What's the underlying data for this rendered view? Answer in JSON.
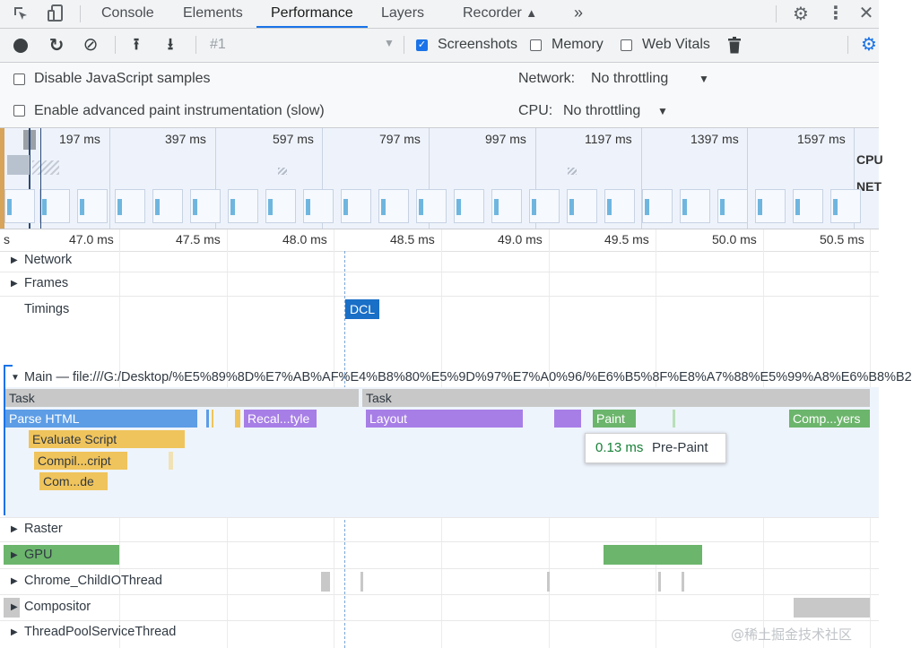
{
  "tabs": {
    "console": "Console",
    "elements": "Elements",
    "performance": "Performance",
    "layers": "Layers",
    "recorder": "Recorder",
    "more": "»"
  },
  "toolbar": {
    "recording_select": "#1",
    "screenshots": "Screenshots",
    "memory": "Memory",
    "web_vitals": "Web Vitals",
    "screenshots_checked": true,
    "memory_checked": false,
    "web_vitals_checked": false
  },
  "settings": {
    "disable_js_samples": "Disable JavaScript samples",
    "advanced_paint": "Enable advanced paint instrumentation (slow)",
    "network_label": "Network:",
    "network_value": "No throttling",
    "cpu_label": "CPU:",
    "cpu_value": "No throttling"
  },
  "overview": {
    "ticks": [
      "197 ms",
      "397 ms",
      "597 ms",
      "797 ms",
      "997 ms",
      "1197 ms",
      "1397 ms",
      "1597 ms"
    ],
    "cpu_label": "CPU",
    "net_label": "NET"
  },
  "ruler": {
    "first": "s",
    "ticks": [
      "47.0 ms",
      "47.5 ms",
      "48.0 ms",
      "48.5 ms",
      "49.0 ms",
      "49.5 ms",
      "50.0 ms",
      "50.5 ms"
    ]
  },
  "tracks": {
    "network": "Network",
    "frames": "Frames",
    "timings": "Timings",
    "dcl": "DCL",
    "main": "Main — file:///G:/Desktop/%E5%89%8D%E7%AB%AF%E4%B8%80%E5%9D%97%E7%A0%96/%E6%B5%8F%E8%A7%88%E5%99%A8%E6%B8%B2",
    "raster": "Raster",
    "gpu": "GPU",
    "child_io": "Chrome_ChildIOThread",
    "compositor": "Compositor",
    "thread_pool": "ThreadPoolServiceThread"
  },
  "events": {
    "task1": "Task",
    "task2": "Task",
    "parse_html": "Parse HTML",
    "recalc_style": "Recal...tyle",
    "layout": "Layout",
    "paint": "Paint",
    "composite_layers": "Comp...yers",
    "evaluate_script": "Evaluate Script",
    "compile_script": "Compil...cript",
    "compile_code": "Com...de"
  },
  "tooltip": {
    "duration": "0.13 ms",
    "name": "Pre-Paint"
  },
  "watermark": "@稀土掘金技术社区",
  "colors": {
    "accent": "#1a73e8",
    "task": "#c8c8c8",
    "html": "#5d9de6",
    "script": "#f0c45c",
    "layout": "#a77ee6",
    "paint": "#6cb56c",
    "dcl": "#1a6fc7"
  }
}
